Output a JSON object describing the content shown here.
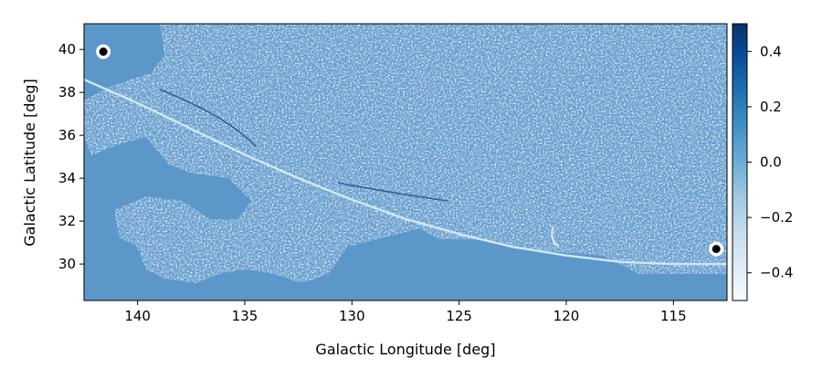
{
  "chart_data": {
    "type": "heatmap",
    "title": "",
    "xlabel": "Galactic Longitude [deg]",
    "ylabel": "Galactic Latitude [deg]",
    "xlim": [
      142.5,
      112.5
    ],
    "ylim": [
      28.3,
      41.2
    ],
    "x_ticks": [
      140,
      135,
      130,
      125,
      120,
      115
    ],
    "x_tick_labels": [
      "140",
      "135",
      "130",
      "125",
      "120",
      "115"
    ],
    "y_ticks": [
      30,
      32,
      34,
      36,
      38,
      40
    ],
    "y_tick_labels": [
      "30",
      "32",
      "34",
      "36",
      "38",
      "40"
    ],
    "colorbar": {
      "min": -0.5,
      "max": 0.5,
      "ticks": [
        0.4,
        0.2,
        0.0,
        -0.2,
        -0.4
      ],
      "tick_labels": [
        "0.4",
        "0.2",
        "0.0",
        "−0.2",
        "−0.4"
      ],
      "colormap": "Blues"
    },
    "background_value": 0.2,
    "colors": {
      "base": "#5b97c9",
      "dark": "#08306b",
      "light": "#f7fbff",
      "curve": "#cfe8f8"
    },
    "curve": {
      "x": [
        142.5,
        140,
        137.5,
        135,
        132.5,
        130,
        127.5,
        125,
        122.5,
        120,
        117.5,
        115,
        112.5
      ],
      "y": [
        38.6,
        37.5,
        36.3,
        35.1,
        34.0,
        33.0,
        32.1,
        31.4,
        30.8,
        30.4,
        30.1,
        30.0,
        30.0
      ]
    },
    "markers": [
      {
        "x": 141.6,
        "y": 39.9
      },
      {
        "x": 113.0,
        "y": 30.7
      }
    ]
  }
}
